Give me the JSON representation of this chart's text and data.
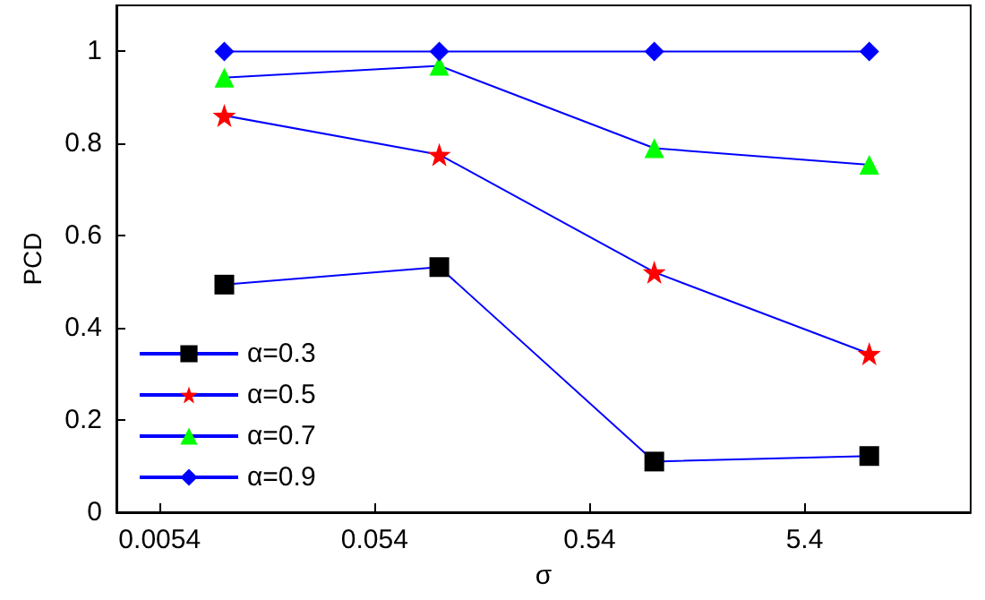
{
  "chart_data": {
    "type": "line",
    "xlabel": "σ",
    "ylabel": "PCD",
    "x": [
      0.0108,
      0.108,
      1.08,
      10.8
    ],
    "log": "x",
    "xlim": [
      0.0034,
      32
    ],
    "xticks": [
      0.0054,
      0.054,
      0.54,
      5.4
    ],
    "ylim": [
      0,
      1.1
    ],
    "yticks": [
      0,
      0.2,
      0.4,
      0.6,
      0.8,
      1
    ],
    "grid": false,
    "legend": "bottom left",
    "line_style": "solid",
    "series": [
      {
        "name": "α=0.3",
        "color": "#000000",
        "marker": "square",
        "values": [
          0.494,
          0.532,
          0.11,
          0.122
        ]
      },
      {
        "name": "α=0.5",
        "color": "#ff0000",
        "marker": "star",
        "values": [
          0.861,
          0.776,
          0.521,
          0.344
        ]
      },
      {
        "name": "α=0.7",
        "color": "#00ff00",
        "marker": "triangle",
        "values": [
          0.943,
          0.969,
          0.79,
          0.754
        ]
      },
      {
        "name": "α=0.9",
        "color": "#0000ff",
        "marker": "diamond",
        "values": [
          1,
          1,
          1,
          1
        ]
      }
    ]
  }
}
